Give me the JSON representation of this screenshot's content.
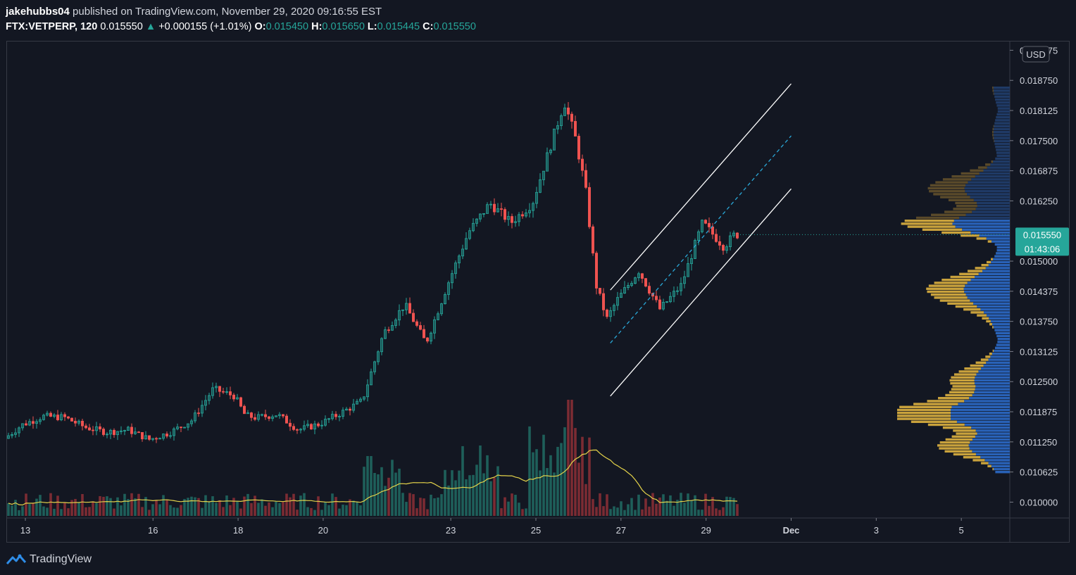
{
  "header": {
    "author": "jakehubbs04",
    "published_text": "published on TradingView.com, November 29, 2020 09:16:55 EST",
    "symbol": "FTX:VETPERP, 120",
    "last": "0.015550",
    "change_arrow": "▲",
    "change": "+0.000155 (+1.01%)",
    "o_label": "O:",
    "o_value": "0.015450",
    "h_label": "H:",
    "h_value": "0.015650",
    "l_label": "L:",
    "l_value": "0.015445",
    "c_label": "C:",
    "c_value": "0.015550"
  },
  "footer": {
    "brand": "TradingView",
    "logo_icon": "tradingview-logo-icon"
  },
  "colors": {
    "background": "#131722",
    "up": "#26a69a",
    "down": "#ef5350",
    "volume_up": "#1e5f5a",
    "volume_down": "#7b2b33",
    "volume_ma": "#e3d24a",
    "channel": "#ffffff",
    "midline": "#2aa8d8",
    "profile_blue": "#2962ff",
    "profile_gold": "#c9a23c"
  },
  "chart_data": {
    "type": "candlestick",
    "symbol": "FTX:VETPERP",
    "interval": "120",
    "currency": "USD",
    "x_ticks": [
      "13",
      "16",
      "18",
      "20",
      "23",
      "25",
      "27",
      "29",
      "Dec",
      "3",
      "5"
    ],
    "y_ticks": [
      "0.019375",
      "0.018750",
      "0.018125",
      "0.017500",
      "0.016875",
      "0.016250",
      "0.015000",
      "0.014375",
      "0.013750",
      "0.013125",
      "0.012500",
      "0.011875",
      "0.011250",
      "0.010625",
      "0.010000"
    ],
    "ylim": [
      0.0097,
      0.0196
    ],
    "last_price_label": "0.015550",
    "countdown_label": "01:43:06",
    "price_path": [
      [
        "12 Nov 00:00",
        0.011
      ],
      [
        "12 Nov 12:00",
        0.01125
      ],
      [
        "13 Nov 00:00",
        0.0116
      ],
      [
        "13 Nov 12:00",
        0.01178
      ],
      [
        "14 Nov 00:00",
        0.01176
      ],
      [
        "14 Nov 12:00",
        0.01155
      ],
      [
        "15 Nov 00:00",
        0.01145
      ],
      [
        "15 Nov 12:00",
        0.0115
      ],
      [
        "16 Nov 00:00",
        0.0113
      ],
      [
        "16 Nov 12:00",
        0.01145
      ],
      [
        "17 Nov 00:00",
        0.0117
      ],
      [
        "17 Nov 12:00",
        0.01235
      ],
      [
        "18 Nov 00:00",
        0.0122
      ],
      [
        "18 Nov 06:00",
        0.0118
      ],
      [
        "18 Nov 12:00",
        0.01175
      ],
      [
        "19 Nov 00:00",
        0.01182
      ],
      [
        "19 Nov 12:00",
        0.0115
      ],
      [
        "20 Nov 00:00",
        0.01162
      ],
      [
        "20 Nov 12:00",
        0.01185
      ],
      [
        "21 Nov 00:00",
        0.0121
      ],
      [
        "21 Nov 12:00",
        0.0135
      ],
      [
        "22 Nov 00:00",
        0.0141
      ],
      [
        "22 Nov 12:00",
        0.0133
      ],
      [
        "23 Nov 00:00",
        0.0145
      ],
      [
        "23 Nov 12:00",
        0.0156
      ],
      [
        "24 Nov 00:00",
        0.0162
      ],
      [
        "24 Nov 12:00",
        0.0158
      ],
      [
        "25 Nov 00:00",
        0.0162
      ],
      [
        "25 Nov 12:00",
        0.0176
      ],
      [
        "25 Nov 18:00",
        0.0183
      ],
      [
        "26 Nov 00:00",
        0.0176
      ],
      [
        "26 Nov 06:00",
        0.0165
      ],
      [
        "26 Nov 12:00",
        0.0145
      ],
      [
        "26 Nov 18:00",
        0.0138
      ],
      [
        "27 Nov 00:00",
        0.0142
      ],
      [
        "27 Nov 12:00",
        0.0148
      ],
      [
        "28 Nov 00:00",
        0.014
      ],
      [
        "28 Nov 12:00",
        0.0145
      ],
      [
        "29 Nov 00:00",
        0.0158
      ],
      [
        "29 Nov 12:00",
        0.0153
      ],
      [
        "29 Nov 18:00",
        0.01555
      ]
    ],
    "annotations": {
      "channel_upper": [
        [
          "26 Nov 18:00",
          0.0144
        ],
        [
          "1 Dec 00:00",
          0.01868
        ]
      ],
      "channel_lower": [
        [
          "26 Nov 18:00",
          0.0122
        ],
        [
          "1 Dec 00:00",
          0.0165
        ]
      ],
      "channel_mid": [
        [
          "26 Nov 18:00",
          0.0133
        ],
        [
          "1 Dec 00:00",
          0.0176
        ]
      ]
    },
    "volume": {
      "ma_length": 20,
      "profile_note": "volume profile on right (visible range)"
    },
    "grid": false
  }
}
